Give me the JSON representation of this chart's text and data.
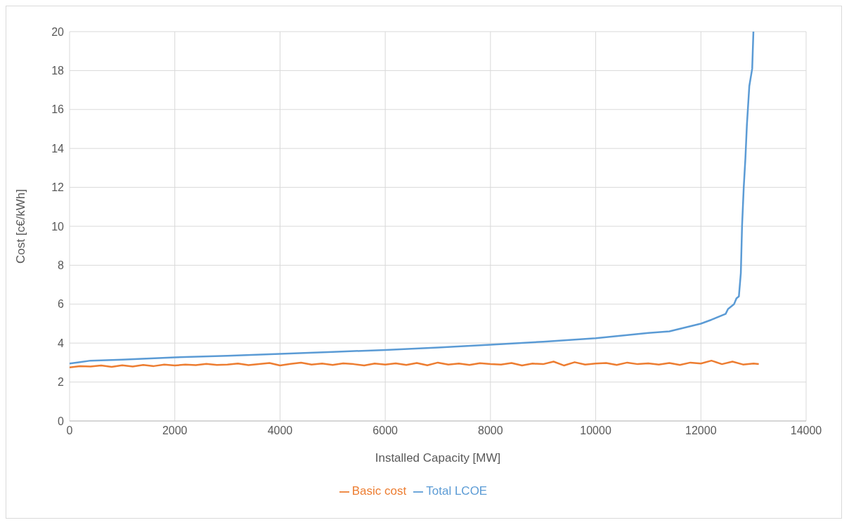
{
  "chart_data": {
    "type": "line",
    "xlabel": "Installed Capacity [MW]",
    "ylabel": "Cost [c€/kWh]",
    "xlim": [
      0,
      14000
    ],
    "xticks": [
      0,
      2000,
      4000,
      6000,
      8000,
      10000,
      12000,
      14000
    ],
    "ylim": [
      0,
      20
    ],
    "yticks": [
      0,
      2,
      4,
      6,
      8,
      10,
      12,
      14,
      16,
      18,
      20
    ],
    "grid": true,
    "legend": "bottom",
    "marker": "none",
    "line_style": "solid",
    "series": [
      {
        "name": "Total LCOE",
        "color": "#5b9bd5",
        "x": [
          0,
          200,
          400,
          1000,
          2000,
          3000,
          4000,
          5000,
          6000,
          7000,
          8000,
          9000,
          10000,
          11000,
          11400,
          12000,
          12200,
          12470,
          12515,
          12630,
          12676,
          12722,
          12759,
          12782,
          12814,
          12846,
          12874,
          12920,
          12975,
          12998
        ],
        "values": [
          2.95,
          3.02,
          3.1,
          3.15,
          3.27,
          3.35,
          3.45,
          3.55,
          3.65,
          3.77,
          3.92,
          4.07,
          4.25,
          4.52,
          4.6,
          5.0,
          5.2,
          5.5,
          5.75,
          6.0,
          6.3,
          6.4,
          7.6,
          10,
          12,
          13.5,
          15.2,
          17.2,
          18.1,
          20
        ]
      },
      {
        "name": "Basic cost",
        "color": "#ed7d31",
        "x": [
          0,
          200,
          400,
          600,
          800,
          1000,
          1200,
          1400,
          1600,
          1800,
          2000,
          2200,
          2400,
          2600,
          2800,
          3000,
          3200,
          3400,
          3600,
          3800,
          4000,
          4200,
          4400,
          4600,
          4800,
          5000,
          5200,
          5400,
          5600,
          5800,
          6000,
          6200,
          6400,
          6600,
          6800,
          7000,
          7200,
          7400,
          7600,
          7800,
          8000,
          8200,
          8400,
          8600,
          8800,
          9000,
          9200,
          9400,
          9600,
          9800,
          10000,
          10200,
          10400,
          10600,
          10800,
          11000,
          11200,
          11400,
          11600,
          11800,
          12000,
          12200,
          12400,
          12600,
          12800,
          13000,
          13100
        ],
        "values": [
          2.75,
          2.82,
          2.8,
          2.85,
          2.78,
          2.86,
          2.8,
          2.88,
          2.82,
          2.9,
          2.85,
          2.9,
          2.87,
          2.93,
          2.88,
          2.9,
          2.95,
          2.87,
          2.92,
          2.98,
          2.85,
          2.93,
          3.0,
          2.9,
          2.95,
          2.88,
          2.96,
          2.92,
          2.85,
          2.95,
          2.9,
          2.96,
          2.88,
          2.98,
          2.86,
          3.0,
          2.9,
          2.95,
          2.88,
          2.97,
          2.92,
          2.9,
          2.98,
          2.85,
          2.95,
          2.92,
          3.05,
          2.85,
          3.02,
          2.9,
          2.95,
          2.98,
          2.88,
          3.0,
          2.92,
          2.96,
          2.9,
          2.98,
          2.88,
          3.0,
          2.95,
          3.1,
          2.92,
          3.05,
          2.9,
          2.95,
          2.92
        ]
      }
    ]
  }
}
